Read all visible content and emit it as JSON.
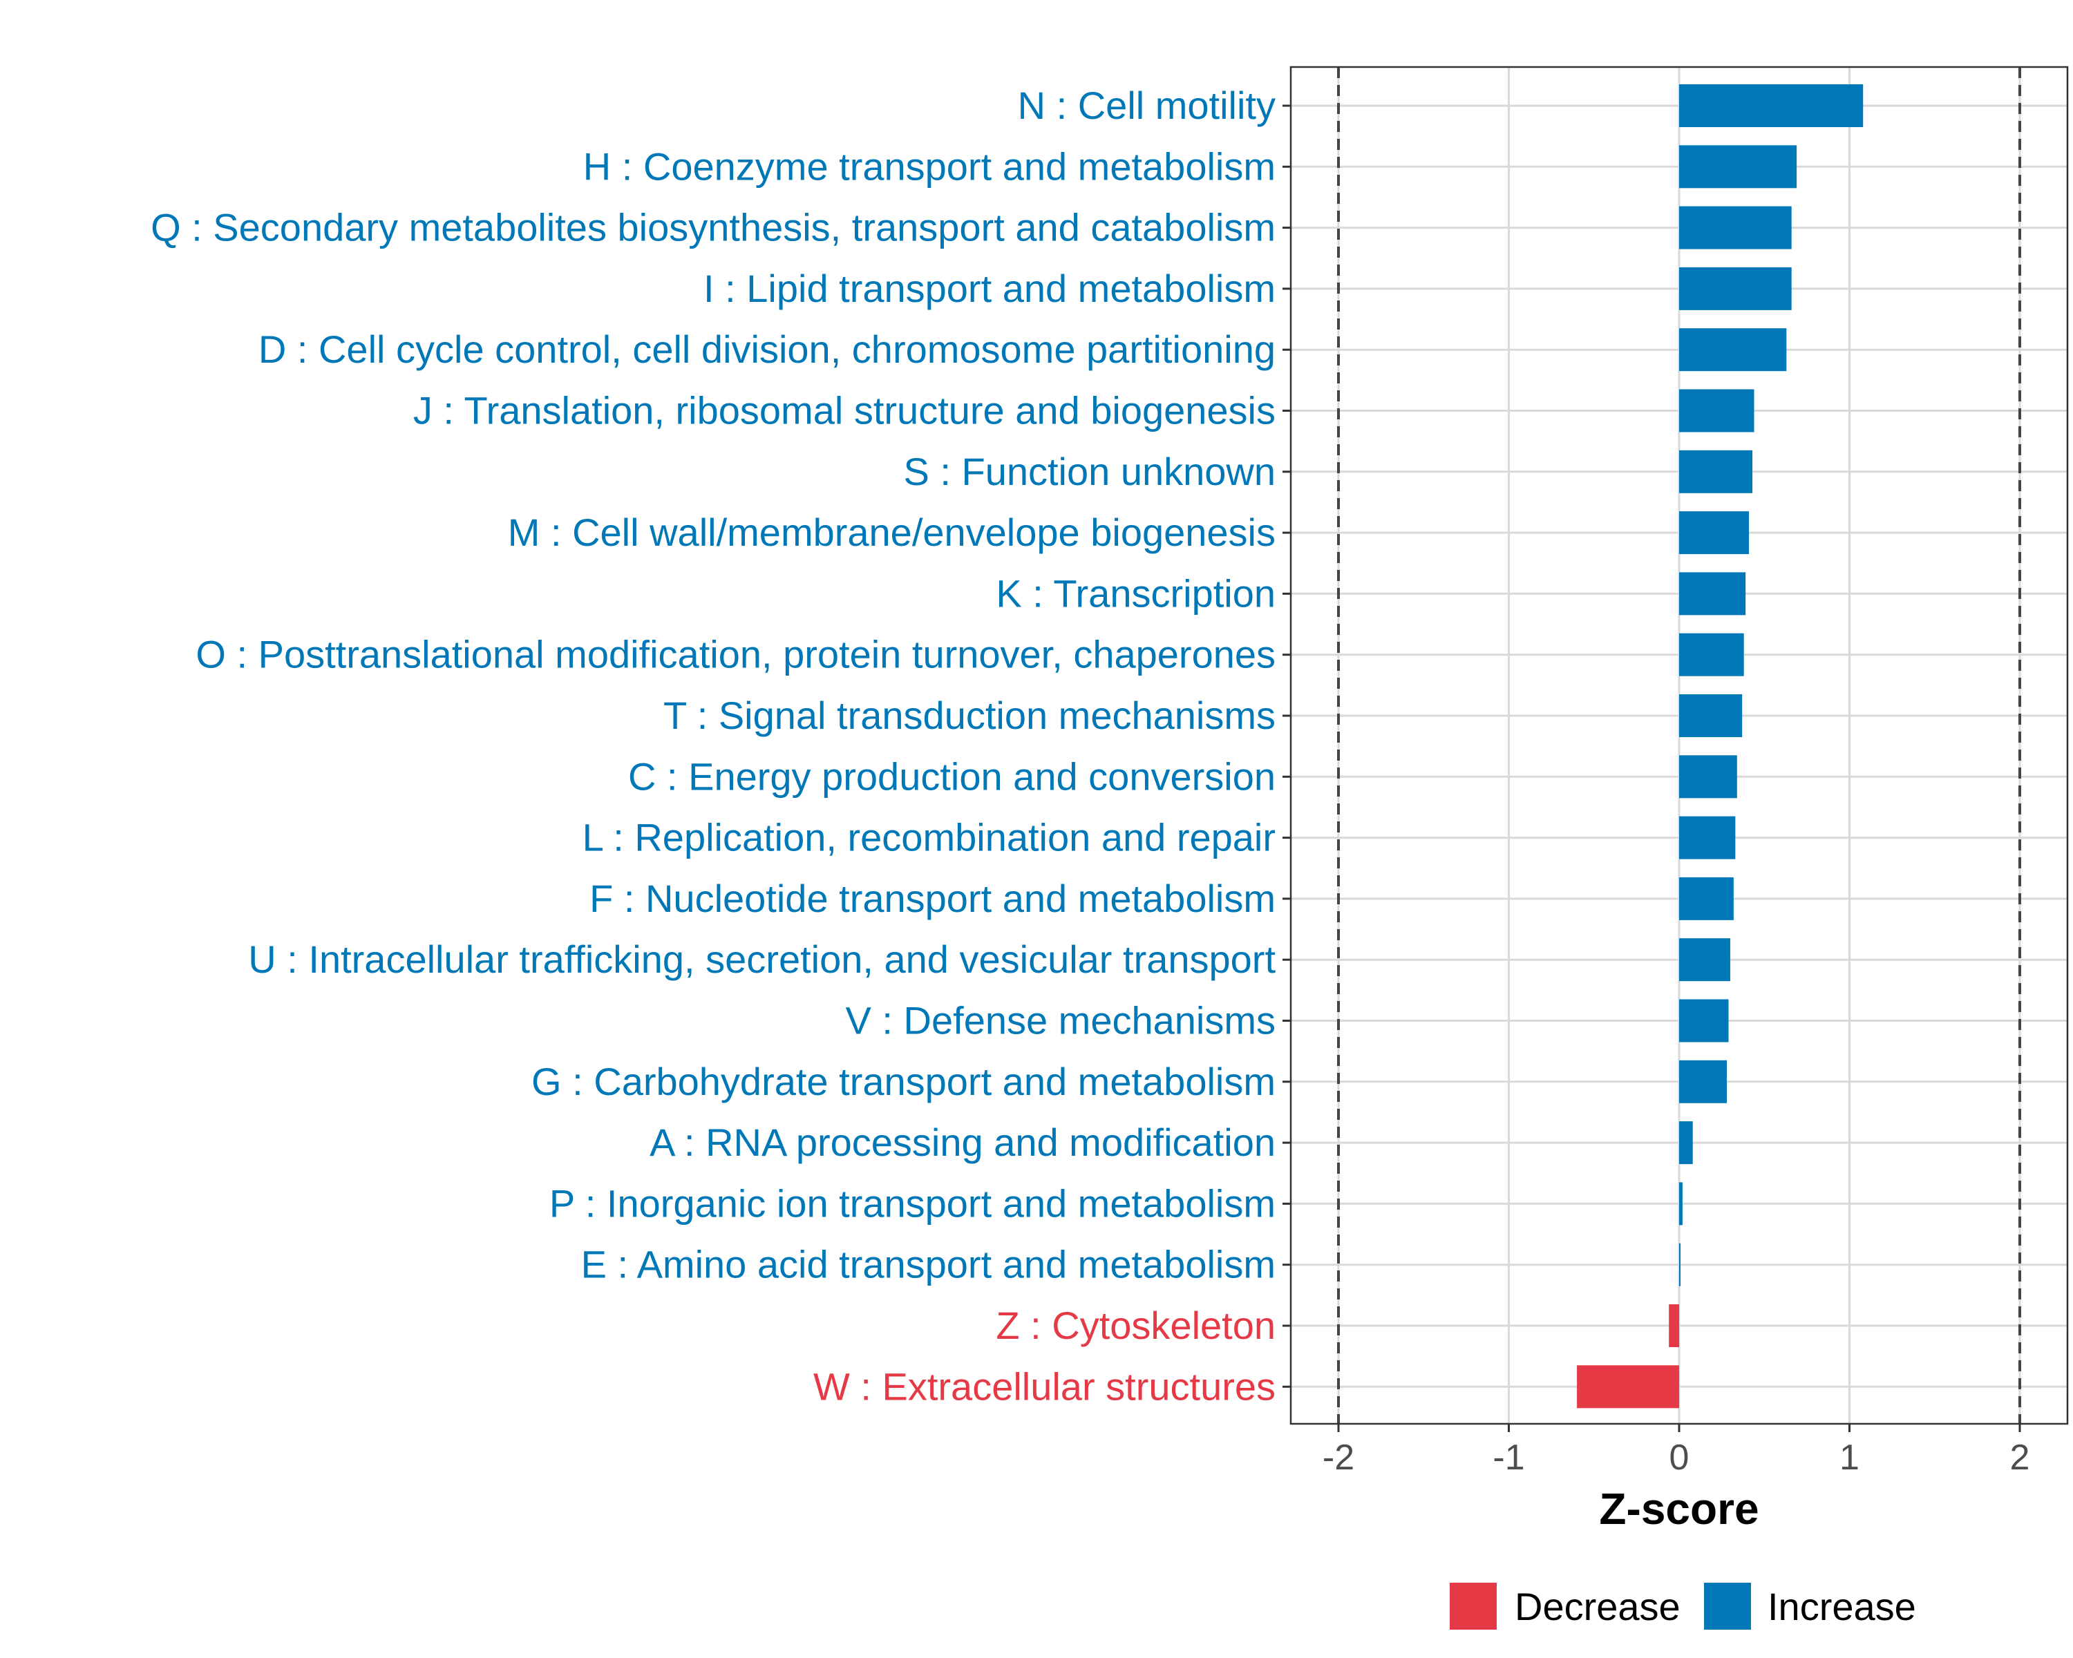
{
  "chart_data": {
    "type": "bar",
    "orientation": "horizontal",
    "title": "",
    "xlabel": "Z-score",
    "ylabel": "",
    "xlim": [
      -2.28,
      2.28
    ],
    "x_ticks": [
      -2,
      -1,
      0,
      1,
      2
    ],
    "x_tick_labels": [
      "-2",
      "-1",
      "0",
      "1",
      "2"
    ],
    "reference_lines": [
      -2,
      2
    ],
    "grid": true,
    "legend_position": "bottom",
    "categories": [
      "N : Cell motility",
      "H : Coenzyme transport and metabolism",
      "Q : Secondary metabolites biosynthesis, transport and catabolism",
      "I : Lipid transport and metabolism",
      "D : Cell cycle control, cell division, chromosome partitioning",
      "J : Translation, ribosomal structure and biogenesis",
      "S : Function unknown",
      "M : Cell wall/membrane/envelope biogenesis",
      "K : Transcription",
      "O : Posttranslational modification, protein turnover, chaperones",
      "T : Signal transduction mechanisms",
      "C : Energy production and conversion",
      "L : Replication, recombination and repair",
      "F : Nucleotide transport and metabolism",
      "U : Intracellular trafficking, secretion, and vesicular transport",
      "V : Defense mechanisms",
      "G : Carbohydrate transport and metabolism",
      "A : RNA processing and modification",
      "P : Inorganic ion transport and metabolism",
      "E : Amino acid transport and metabolism",
      "Z : Cytoskeleton",
      "W : Extracellular structures"
    ],
    "values": [
      1.08,
      0.69,
      0.66,
      0.66,
      0.63,
      0.44,
      0.43,
      0.41,
      0.39,
      0.38,
      0.37,
      0.34,
      0.33,
      0.32,
      0.3,
      0.29,
      0.28,
      0.08,
      0.02,
      0.005,
      -0.06,
      -0.6
    ],
    "direction": [
      "Increase",
      "Increase",
      "Increase",
      "Increase",
      "Increase",
      "Increase",
      "Increase",
      "Increase",
      "Increase",
      "Increase",
      "Increase",
      "Increase",
      "Increase",
      "Increase",
      "Increase",
      "Increase",
      "Increase",
      "Increase",
      "Increase",
      "Increase",
      "Decrease",
      "Decrease"
    ],
    "legend": [
      {
        "name": "Decrease",
        "color": "#e63946"
      },
      {
        "name": "Increase",
        "color": "#0077b6"
      }
    ]
  }
}
